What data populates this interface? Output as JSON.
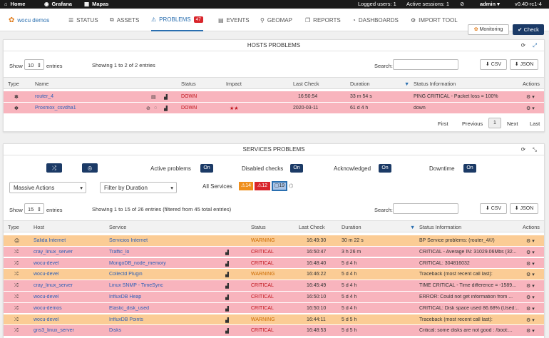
{
  "topbar": {
    "home": "Home",
    "grafana": "Grafana",
    "maps": "Mapas",
    "logged": "Logged users: 1",
    "sessions": "Active sessions: 1",
    "user": "admin",
    "version": "v0.40-rc1-4"
  },
  "nav": {
    "brand": "wocu demos",
    "status": "STATUS",
    "assets": "ASSETS",
    "problems": "PROBLEMS",
    "problems_count": "47",
    "events": "EVENTS",
    "geomap": "GEOMAP",
    "reports": "REPORTS",
    "dashboards": "DASHBOARDS",
    "import": "IMPORT TOOL",
    "monitoring": "Monitoring",
    "check": "Check"
  },
  "hosts": {
    "title": "HOSTS PROBLEMS",
    "show": "Show",
    "entries": "entries",
    "per_page": "10",
    "info": "Showing 1 to 2 of 2 entries",
    "search": "Search:",
    "csv": "CSV",
    "json": "JSON",
    "cols": [
      "Type",
      "Name",
      "Status",
      "Impact",
      "Last Check",
      "Duration",
      "Status Information",
      "Actions"
    ],
    "rows": [
      {
        "name": "router_4",
        "status": "DOWN",
        "impact": "",
        "last": "16:50:54",
        "dur": "33 m 54 s",
        "info": "PING CRITICAL - Packet loss = 100%"
      },
      {
        "name": "Proxmox_csvdha1",
        "status": "DOWN",
        "impact": "★★",
        "last": "2020-03-11",
        "dur": "61 d 4 h",
        "info": "down"
      }
    ],
    "pag": {
      "first": "First",
      "prev": "Previous",
      "page": "1",
      "next": "Next",
      "last": "Last"
    }
  },
  "services": {
    "title": "SERVICES PROBLEMS",
    "active": "Active problems",
    "disabled": "Disabled checks",
    "ack": "Acknowledged",
    "downtime": "Downtime",
    "on": "On",
    "massive": "Massive Actions",
    "filter": "Filter by Duration",
    "all": "All Services",
    "c14": "14",
    "c12": "12",
    "c19": "19",
    "show": "Show",
    "per_page": "15",
    "entries": "entries",
    "info": "Showing 1 to 15 of 26 entries (filtered from 45 total entries)",
    "search": "Search:",
    "csv": "CSV",
    "json": "JSON",
    "cols": [
      "Type",
      "Host",
      "Service",
      "Status",
      "Last Check",
      "Duration",
      "Status Information",
      "Actions"
    ],
    "rows": [
      {
        "cls": "orange",
        "host": "Salida Internet",
        "svc": "Servicios Internet",
        "status": "WARNING",
        "last": "16:49:30",
        "dur": "30 m 22 s",
        "info": "BP Service problems: (router_4///)"
      },
      {
        "cls": "red",
        "host": "cray_linux_server",
        "svc": "Traffic_lo",
        "status": "CRITICAL",
        "last": "16:50:47",
        "dur": "3 h 26 m",
        "info": "CRITICAL - Average IN: 31029.06Mbs (32..."
      },
      {
        "cls": "red",
        "host": "wocu-devel",
        "svc": "MongoDB_node_memory",
        "status": "CRITICAL",
        "last": "16:48:40",
        "dur": "5 d 4 h",
        "info": "CRITICAL: 304816032"
      },
      {
        "cls": "orange",
        "host": "wocu-devel",
        "svc": "Collectd Plugin",
        "status": "WARNING",
        "last": "16:46:22",
        "dur": "5 d 4 h",
        "info": "Traceback (most recent call last):"
      },
      {
        "cls": "red",
        "host": "cray_linux_server",
        "svc": "Linux SNMP - TimeSync",
        "status": "CRITICAL",
        "last": "16:45:49",
        "dur": "5 d 4 h",
        "info": "TIME CRITICAL - Time difference = -1589..."
      },
      {
        "cls": "red",
        "host": "wocu-devel",
        "svc": "InfluxDB Heap",
        "status": "CRITICAL",
        "last": "16:50:10",
        "dur": "5 d 4 h",
        "info": "ERROR: Could not get information from ..."
      },
      {
        "cls": "red",
        "host": "wocu-demos",
        "svc": "Elastic_disk_used",
        "status": "CRITICAL",
        "last": "16:50:10",
        "dur": "5 d 4 h",
        "info": "CRITICAL: Disk space used 86.68% (Used:..."
      },
      {
        "cls": "orange",
        "host": "wocu-devel",
        "svc": "InfluxDB Points",
        "status": "WARNING",
        "last": "16:44:11",
        "dur": "5 d 5 h",
        "info": "Traceback (most recent call last):"
      },
      {
        "cls": "red",
        "host": "gns3_linux_server",
        "svc": "Disks",
        "status": "CRITICAL",
        "last": "16:48:53",
        "dur": "5 d 5 h",
        "info": "Critical: some disks are not good : /boot:..."
      }
    ]
  }
}
